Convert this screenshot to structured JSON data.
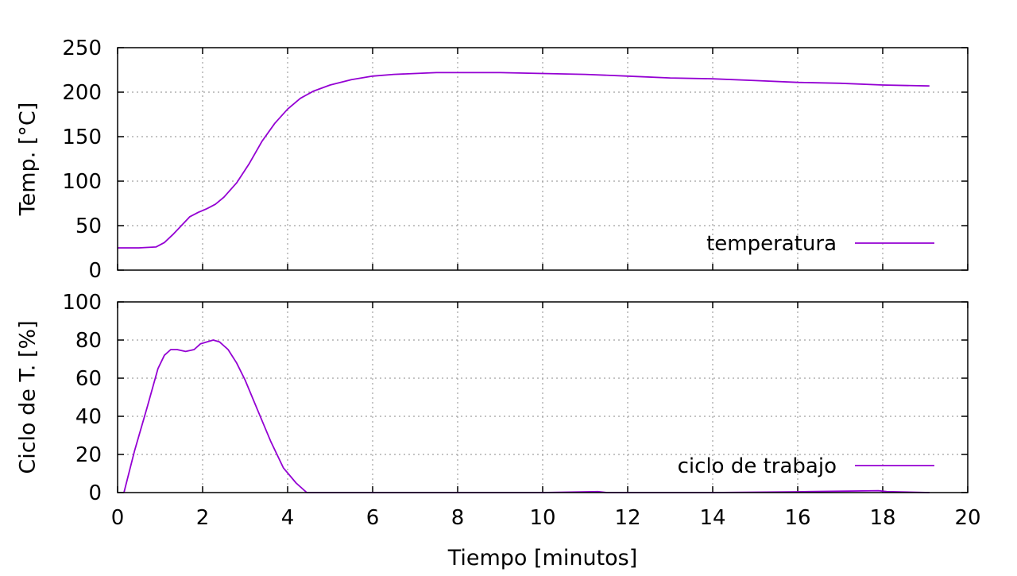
{
  "colors": {
    "series": "#9400d3",
    "frame": "#000000",
    "grid": "#a0a0a0"
  },
  "chart_data": [
    {
      "type": "line",
      "title": "",
      "xlabel": "",
      "ylabel": "Temp. [°C]",
      "xlim": [
        0,
        20
      ],
      "ylim": [
        0,
        250
      ],
      "x_ticks": [
        0,
        2,
        4,
        6,
        8,
        10,
        12,
        14,
        16,
        18,
        20
      ],
      "y_ticks": [
        0,
        50,
        100,
        150,
        200,
        250
      ],
      "show_x_tick_labels": false,
      "grid": true,
      "legend_position": "bottom-right",
      "series": [
        {
          "name": "temperatura",
          "color": "#9400d3",
          "x": [
            0,
            0.5,
            0.9,
            1.1,
            1.3,
            1.5,
            1.7,
            1.9,
            2.1,
            2.3,
            2.5,
            2.8,
            3.1,
            3.4,
            3.7,
            4.0,
            4.3,
            4.6,
            5.0,
            5.5,
            6.0,
            6.5,
            7.0,
            7.5,
            8.0,
            9.0,
            10.0,
            11.0,
            12.0,
            13.0,
            14.0,
            15.0,
            16.0,
            17.0,
            18.0,
            19.1
          ],
          "y": [
            25,
            25,
            26,
            31,
            40,
            50,
            60,
            65,
            69,
            74,
            82,
            98,
            120,
            145,
            165,
            181,
            193,
            201,
            208,
            214,
            218,
            220,
            221,
            222,
            222,
            222,
            221,
            220,
            218,
            216,
            215,
            213,
            211,
            210,
            208,
            207
          ]
        }
      ]
    },
    {
      "type": "line",
      "title": "",
      "xlabel": "Tiempo [minutos]",
      "ylabel": "Ciclo de T. [%]",
      "xlim": [
        0,
        20
      ],
      "ylim": [
        0,
        100
      ],
      "x_ticks": [
        0,
        2,
        4,
        6,
        8,
        10,
        12,
        14,
        16,
        18,
        20
      ],
      "y_ticks": [
        0,
        20,
        40,
        60,
        80,
        100
      ],
      "show_x_tick_labels": true,
      "grid": true,
      "legend_position": "bottom-right",
      "series": [
        {
          "name": "ciclo de trabajo",
          "color": "#9400d3",
          "x": [
            0.15,
            0.4,
            0.7,
            0.95,
            1.1,
            1.25,
            1.4,
            1.6,
            1.8,
            1.95,
            2.1,
            2.25,
            2.4,
            2.6,
            2.8,
            3.0,
            3.3,
            3.6,
            3.9,
            4.2,
            4.45,
            4.7,
            6.0,
            8.0,
            10.0,
            11.3,
            11.5,
            12.0,
            14.0,
            16.0,
            17.9,
            18.1,
            19.1
          ],
          "y": [
            0,
            22,
            45,
            65,
            72,
            75,
            75,
            74,
            75,
            78,
            79,
            80,
            79,
            75,
            68,
            59,
            43,
            27,
            13,
            5,
            0,
            0,
            0,
            0,
            0,
            0.5,
            0,
            0,
            0,
            0.4,
            1,
            0.5,
            0
          ]
        }
      ]
    }
  ]
}
